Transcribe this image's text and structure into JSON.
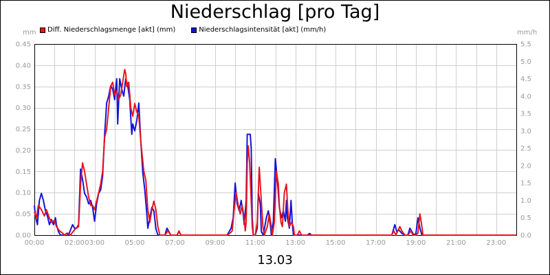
{
  "header": {
    "title": "Niederschlag [pro Tag]"
  },
  "footer": {
    "date": "13.03"
  },
  "units": {
    "left": "mm",
    "right": "mm/h"
  },
  "legend": [
    {
      "label": "Diff. Niederschlagsmenge [akt] (mm)",
      "color": "#e8141c"
    },
    {
      "label": "Niederschlagsintensität [akt] (mm/h)",
      "color": "#1414d4"
    }
  ],
  "chart_data": {
    "type": "line",
    "grid": true,
    "legend_position": "top-left",
    "x_ticks": [
      "00:00",
      "02:00",
      "03:00",
      "05:00",
      "07:00",
      "09:00",
      "11:00",
      "13:00",
      "15:00",
      "17:00",
      "19:00",
      "21:00",
      "23:00"
    ],
    "x_tick_hours": [
      0,
      2,
      3,
      5,
      7,
      9,
      11,
      13,
      15,
      17,
      19,
      21,
      23
    ],
    "x_range_hours": [
      0,
      24
    ],
    "y_left": {
      "range": [
        0,
        0.45
      ],
      "ticks": [
        "0.00",
        "0.05",
        "0.10",
        "0.15",
        "0.20",
        "0.25",
        "0.30",
        "0.35",
        "0.40",
        "0.45"
      ]
    },
    "y_right": {
      "range": [
        0,
        5.5
      ],
      "ticks": [
        "0.0",
        "0.5",
        "1.0",
        "1.5",
        "2.0",
        "2.5",
        "3.0",
        "3.5",
        "4.0",
        "4.5",
        "5.0",
        "5.5"
      ]
    },
    "series": [
      {
        "name": "Diff. Niederschlagsmenge [akt] (mm)",
        "axis": "left",
        "color": "#e8141c",
        "points": [
          [
            0.0,
            0.055
          ],
          [
            0.1,
            0.04
          ],
          [
            0.2,
            0.07
          ],
          [
            0.35,
            0.06
          ],
          [
            0.5,
            0.045
          ],
          [
            0.6,
            0.06
          ],
          [
            0.75,
            0.04
          ],
          [
            0.85,
            0.03
          ],
          [
            1.0,
            0.035
          ],
          [
            1.1,
            0.02
          ],
          [
            1.25,
            0.01
          ],
          [
            1.4,
            0.005
          ],
          [
            1.5,
            0.0
          ],
          [
            1.65,
            0.005
          ],
          [
            1.8,
            0.0
          ],
          [
            1.95,
            0.01
          ],
          [
            2.05,
            0.015
          ],
          [
            2.2,
            0.02
          ],
          [
            2.3,
            0.12
          ],
          [
            2.4,
            0.17
          ],
          [
            2.5,
            0.15
          ],
          [
            2.6,
            0.12
          ],
          [
            2.7,
            0.09
          ],
          [
            2.8,
            0.07
          ],
          [
            2.9,
            0.07
          ],
          [
            3.0,
            0.06
          ],
          [
            3.1,
            0.08
          ],
          [
            3.2,
            0.1
          ],
          [
            3.3,
            0.12
          ],
          [
            3.4,
            0.15
          ],
          [
            3.5,
            0.23
          ],
          [
            3.6,
            0.25
          ],
          [
            3.7,
            0.3
          ],
          [
            3.8,
            0.35
          ],
          [
            3.9,
            0.36
          ],
          [
            4.0,
            0.33
          ],
          [
            4.1,
            0.34
          ],
          [
            4.2,
            0.32
          ],
          [
            4.3,
            0.33
          ],
          [
            4.4,
            0.36
          ],
          [
            4.5,
            0.39
          ],
          [
            4.55,
            0.38
          ],
          [
            4.6,
            0.35
          ],
          [
            4.7,
            0.36
          ],
          [
            4.8,
            0.3
          ],
          [
            4.9,
            0.28
          ],
          [
            5.0,
            0.31
          ],
          [
            5.1,
            0.29
          ],
          [
            5.2,
            0.28
          ],
          [
            5.3,
            0.22
          ],
          [
            5.45,
            0.15
          ],
          [
            5.55,
            0.13
          ],
          [
            5.65,
            0.06
          ],
          [
            5.75,
            0.03
          ],
          [
            5.85,
            0.06
          ],
          [
            5.95,
            0.08
          ],
          [
            6.05,
            0.06
          ],
          [
            6.15,
            0.02
          ],
          [
            6.25,
            0.0
          ],
          [
            6.5,
            0.0
          ],
          [
            6.65,
            0.01
          ],
          [
            6.8,
            0.0
          ],
          [
            7.1,
            0.0
          ],
          [
            7.2,
            0.01
          ],
          [
            7.3,
            0.0
          ],
          [
            9.6,
            0.0
          ],
          [
            9.75,
            0.005
          ],
          [
            9.85,
            0.01
          ],
          [
            9.95,
            0.06
          ],
          [
            10.05,
            0.1
          ],
          [
            10.15,
            0.07
          ],
          [
            10.25,
            0.05
          ],
          [
            10.35,
            0.07
          ],
          [
            10.45,
            0.04
          ],
          [
            10.5,
            0.01
          ],
          [
            10.55,
            0.03
          ],
          [
            10.6,
            0.17
          ],
          [
            10.65,
            0.21
          ],
          [
            10.72,
            0.17
          ],
          [
            10.78,
            0.1
          ],
          [
            10.85,
            0.02
          ],
          [
            10.9,
            0.0
          ],
          [
            11.0,
            0.0
          ],
          [
            11.1,
            0.03
          ],
          [
            11.2,
            0.16
          ],
          [
            11.3,
            0.08
          ],
          [
            11.38,
            0.02
          ],
          [
            11.45,
            0.0
          ],
          [
            11.6,
            0.02
          ],
          [
            11.7,
            0.05
          ],
          [
            11.8,
            0.02
          ],
          [
            11.85,
            0.0
          ],
          [
            11.95,
            0.03
          ],
          [
            12.05,
            0.15
          ],
          [
            12.15,
            0.12
          ],
          [
            12.2,
            0.07
          ],
          [
            12.28,
            0.03
          ],
          [
            12.35,
            0.02
          ],
          [
            12.45,
            0.1
          ],
          [
            12.55,
            0.12
          ],
          [
            12.62,
            0.06
          ],
          [
            12.7,
            0.02
          ],
          [
            12.8,
            0.03
          ],
          [
            12.9,
            0.02
          ],
          [
            12.95,
            0.0
          ],
          [
            13.1,
            0.0
          ],
          [
            13.2,
            0.01
          ],
          [
            13.3,
            0.0
          ],
          [
            17.8,
            0.0
          ],
          [
            17.9,
            0.01
          ],
          [
            18.0,
            0.0
          ],
          [
            18.1,
            0.01
          ],
          [
            18.2,
            0.02
          ],
          [
            18.3,
            0.01
          ],
          [
            18.45,
            0.0
          ],
          [
            18.6,
            0.0
          ],
          [
            18.75,
            0.01
          ],
          [
            18.85,
            0.0
          ],
          [
            19.0,
            0.0
          ],
          [
            19.1,
            0.005
          ],
          [
            19.2,
            0.05
          ],
          [
            19.3,
            0.02
          ],
          [
            19.35,
            0.0
          ],
          [
            24.0,
            0.0
          ]
        ]
      },
      {
        "name": "Niederschlagsintensität [akt] (mm/h)",
        "axis": "right",
        "color": "#1414d4",
        "points": [
          [
            0.0,
            0.85
          ],
          [
            0.05,
            0.55
          ],
          [
            0.15,
            0.3
          ],
          [
            0.25,
            1.0
          ],
          [
            0.35,
            1.2
          ],
          [
            0.45,
            1.0
          ],
          [
            0.55,
            0.7
          ],
          [
            0.65,
            0.55
          ],
          [
            0.75,
            0.3
          ],
          [
            0.85,
            0.45
          ],
          [
            0.95,
            0.3
          ],
          [
            1.05,
            0.5
          ],
          [
            1.1,
            0.3
          ],
          [
            1.2,
            0.1
          ],
          [
            1.3,
            0.0
          ],
          [
            1.5,
            0.0
          ],
          [
            1.6,
            0.05
          ],
          [
            1.7,
            0.0
          ],
          [
            1.9,
            0.3
          ],
          [
            2.0,
            0.2
          ],
          [
            2.1,
            0.2
          ],
          [
            2.2,
            0.3
          ],
          [
            2.3,
            1.9
          ],
          [
            2.4,
            1.6
          ],
          [
            2.5,
            1.2
          ],
          [
            2.6,
            1.1
          ],
          [
            2.7,
            0.9
          ],
          [
            2.8,
            1.0
          ],
          [
            2.9,
            0.8
          ],
          [
            3.0,
            0.4
          ],
          [
            3.1,
            0.9
          ],
          [
            3.2,
            1.2
          ],
          [
            3.3,
            1.3
          ],
          [
            3.4,
            1.7
          ],
          [
            3.5,
            2.9
          ],
          [
            3.6,
            3.8
          ],
          [
            3.7,
            4.0
          ],
          [
            3.8,
            4.3
          ],
          [
            3.9,
            4.2
          ],
          [
            4.0,
            3.9
          ],
          [
            4.1,
            4.5
          ],
          [
            4.15,
            3.2
          ],
          [
            4.25,
            4.5
          ],
          [
            4.35,
            4.2
          ],
          [
            4.45,
            4.0
          ],
          [
            4.55,
            4.5
          ],
          [
            4.65,
            4.3
          ],
          [
            4.75,
            3.9
          ],
          [
            4.85,
            2.9
          ],
          [
            4.9,
            3.2
          ],
          [
            5.0,
            3.0
          ],
          [
            5.1,
            3.3
          ],
          [
            5.2,
            3.8
          ],
          [
            5.3,
            2.7
          ],
          [
            5.4,
            1.8
          ],
          [
            5.5,
            1.3
          ],
          [
            5.6,
            0.6
          ],
          [
            5.65,
            0.2
          ],
          [
            5.75,
            0.5
          ],
          [
            5.85,
            0.8
          ],
          [
            5.95,
            0.7
          ],
          [
            6.05,
            0.2
          ],
          [
            6.15,
            0.0
          ],
          [
            6.5,
            0.0
          ],
          [
            6.6,
            0.2
          ],
          [
            6.7,
            0.1
          ],
          [
            6.8,
            0.0
          ],
          [
            7.1,
            0.0
          ],
          [
            7.2,
            0.1
          ],
          [
            7.3,
            0.0
          ],
          [
            9.6,
            0.0
          ],
          [
            9.7,
            0.1
          ],
          [
            9.8,
            0.2
          ],
          [
            9.9,
            0.5
          ],
          [
            10.0,
            1.5
          ],
          [
            10.1,
            0.9
          ],
          [
            10.2,
            0.7
          ],
          [
            10.3,
            1.0
          ],
          [
            10.4,
            0.6
          ],
          [
            10.45,
            0.3
          ],
          [
            10.55,
            1.0
          ],
          [
            10.6,
            2.9
          ],
          [
            10.75,
            2.9
          ],
          [
            10.8,
            2.5
          ],
          [
            10.85,
            0.5
          ],
          [
            10.9,
            0.0
          ],
          [
            11.0,
            0.0
          ],
          [
            11.1,
            0.2
          ],
          [
            11.15,
            1.2
          ],
          [
            11.25,
            0.9
          ],
          [
            11.3,
            0.1
          ],
          [
            11.4,
            0.0
          ],
          [
            11.55,
            0.5
          ],
          [
            11.65,
            0.7
          ],
          [
            11.75,
            0.3
          ],
          [
            11.8,
            0.0
          ],
          [
            11.9,
            0.4
          ],
          [
            12.0,
            2.2
          ],
          [
            12.1,
            1.6
          ],
          [
            12.2,
            0.8
          ],
          [
            12.3,
            0.5
          ],
          [
            12.4,
            0.7
          ],
          [
            12.5,
            0.4
          ],
          [
            12.55,
            1.0
          ],
          [
            12.6,
            0.5
          ],
          [
            12.7,
            0.2
          ],
          [
            12.78,
            1.0
          ],
          [
            12.85,
            0.3
          ],
          [
            12.9,
            0.0
          ],
          [
            13.6,
            0.0
          ],
          [
            13.7,
            0.05
          ],
          [
            13.8,
            0.0
          ],
          [
            17.8,
            0.0
          ],
          [
            17.85,
            0.1
          ],
          [
            17.95,
            0.3
          ],
          [
            18.05,
            0.1
          ],
          [
            18.15,
            0.15
          ],
          [
            18.3,
            0.05
          ],
          [
            18.45,
            0.0
          ],
          [
            18.6,
            0.0
          ],
          [
            18.7,
            0.2
          ],
          [
            18.8,
            0.1
          ],
          [
            18.9,
            0.0
          ],
          [
            19.0,
            0.05
          ],
          [
            19.1,
            0.5
          ],
          [
            19.2,
            0.2
          ],
          [
            19.3,
            0.0
          ],
          [
            24.0,
            0.0
          ]
        ]
      }
    ]
  }
}
